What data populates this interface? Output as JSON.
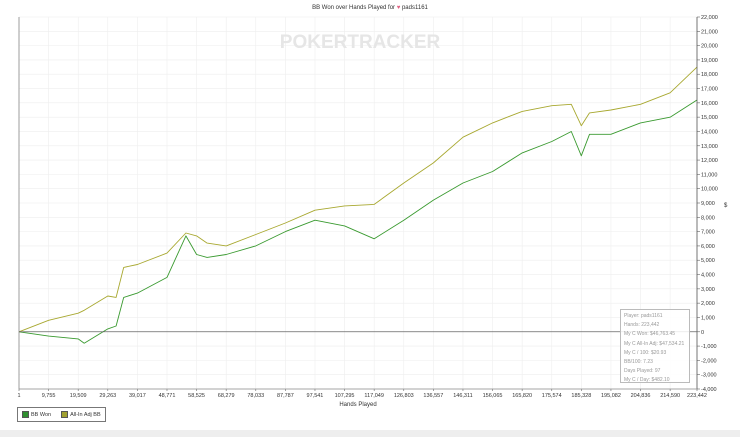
{
  "title": {
    "prefix": "BB Won over Hands Played for",
    "icon": "heart-icon",
    "player": "pads1161"
  },
  "watermark": "POKERTRACKER",
  "legend": [
    {
      "label": "BB Won",
      "color": "#3a9a30"
    },
    {
      "label": "All-In Adj BB",
      "color": "#a8a830"
    }
  ],
  "info_box": [
    "Player: pads1161",
    "Hands: 223,442",
    "My C Won: $46,763.45",
    "My C All-In Adj: $47,534.21",
    "My C / 100: $20.93",
    "BB/100: 7.23",
    "Days Played: 97",
    "My C / Day: $482.10"
  ],
  "chart_data": {
    "type": "line",
    "title": "BB Won over Hands Played for pads1161",
    "xlabel": "Hands Played",
    "ylabel": "$",
    "xlim": [
      1,
      223442
    ],
    "ylim": [
      -4000,
      22000
    ],
    "y_axis_position": "right",
    "grid": true,
    "legend_position": "bottom-left",
    "x_ticks": [
      "1",
      "9,755",
      "19,509",
      "29,263",
      "39,017",
      "48,771",
      "58,525",
      "68,279",
      "78,033",
      "87,787",
      "97,541",
      "107,295",
      "117,049",
      "126,803",
      "136,557",
      "146,311",
      "156,065",
      "165,820",
      "175,574",
      "185,328",
      "195,082",
      "204,836",
      "214,590",
      "223,442"
    ],
    "y_ticks": [
      "22,000",
      "21,000",
      "20,000",
      "19,000",
      "18,000",
      "17,000",
      "16,000",
      "15,000",
      "14,000",
      "13,000",
      "12,000",
      "11,000",
      "10,000",
      "9,000",
      "8,000",
      "7,000",
      "6,000",
      "5,000",
      "4,000",
      "3,000",
      "2,000",
      "1,000",
      "0",
      "-1,000",
      "-2,000",
      "-3,000",
      "-4,000"
    ],
    "x": [
      1,
      9755,
      19509,
      21500,
      29263,
      32000,
      34500,
      39017,
      48771,
      55000,
      58525,
      62000,
      68279,
      78033,
      87787,
      97541,
      107295,
      117049,
      126803,
      136557,
      146311,
      156065,
      165820,
      175574,
      182000,
      185328,
      188000,
      195082,
      204836,
      214590,
      223442
    ],
    "series": [
      {
        "name": "BB Won",
        "color": "#3a9a30",
        "values": [
          0,
          -300,
          -500,
          -800,
          200,
          400,
          2400,
          2700,
          3800,
          6700,
          5400,
          5200,
          5400,
          6000,
          7000,
          7800,
          7400,
          6500,
          7800,
          9200,
          10400,
          11200,
          12500,
          13300,
          14000,
          12300,
          13800,
          13800,
          14600,
          15000,
          16200
        ]
      },
      {
        "name": "All-In Adj BB",
        "color": "#a8a830",
        "values": [
          0,
          800,
          1300,
          1500,
          2500,
          2400,
          4500,
          4700,
          5500,
          6900,
          6700,
          6200,
          6000,
          6800,
          7600,
          8500,
          8800,
          8900,
          10400,
          11800,
          13600,
          14600,
          15400,
          15800,
          15900,
          14400,
          15300,
          15500,
          15900,
          16700,
          18500
        ]
      }
    ]
  }
}
